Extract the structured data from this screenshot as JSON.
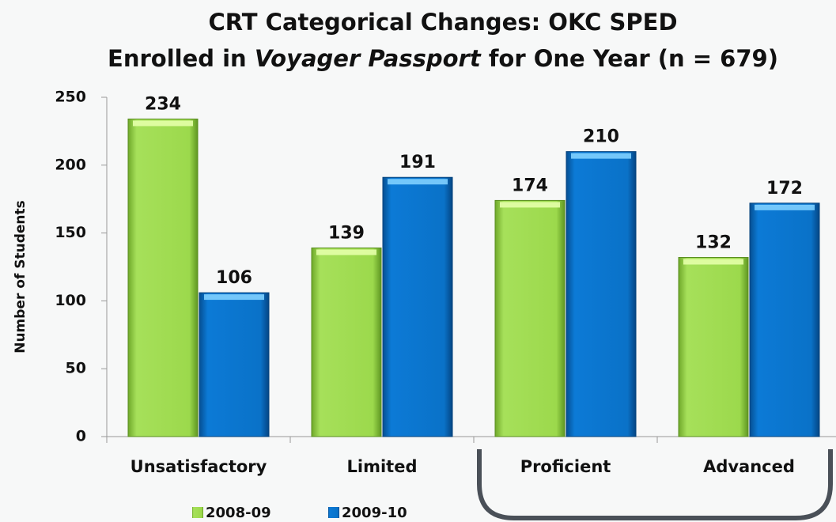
{
  "chart_data": {
    "type": "bar",
    "title": "CRT Categorical Changes: OKC SPED",
    "subtitle": [
      "Enrolled in ",
      "Voyager Passport",
      " for One Year (n = 679)"
    ],
    "y_label": "Number of Students",
    "categories": [
      "Unsatisfactory",
      "Limited",
      "Proficient",
      "Advanced"
    ],
    "series": [
      {
        "name": "2008-09",
        "color": "#8fd13f",
        "values": [
          234,
          139,
          174,
          132
        ]
      },
      {
        "name": "2009-10",
        "color": "#0a72c8",
        "values": [
          106,
          191,
          210,
          172
        ]
      }
    ],
    "ylim": [
      0,
      250
    ],
    "yticks": [
      0,
      50,
      100,
      150,
      200,
      250
    ],
    "grid": false,
    "legend": "bottom"
  }
}
